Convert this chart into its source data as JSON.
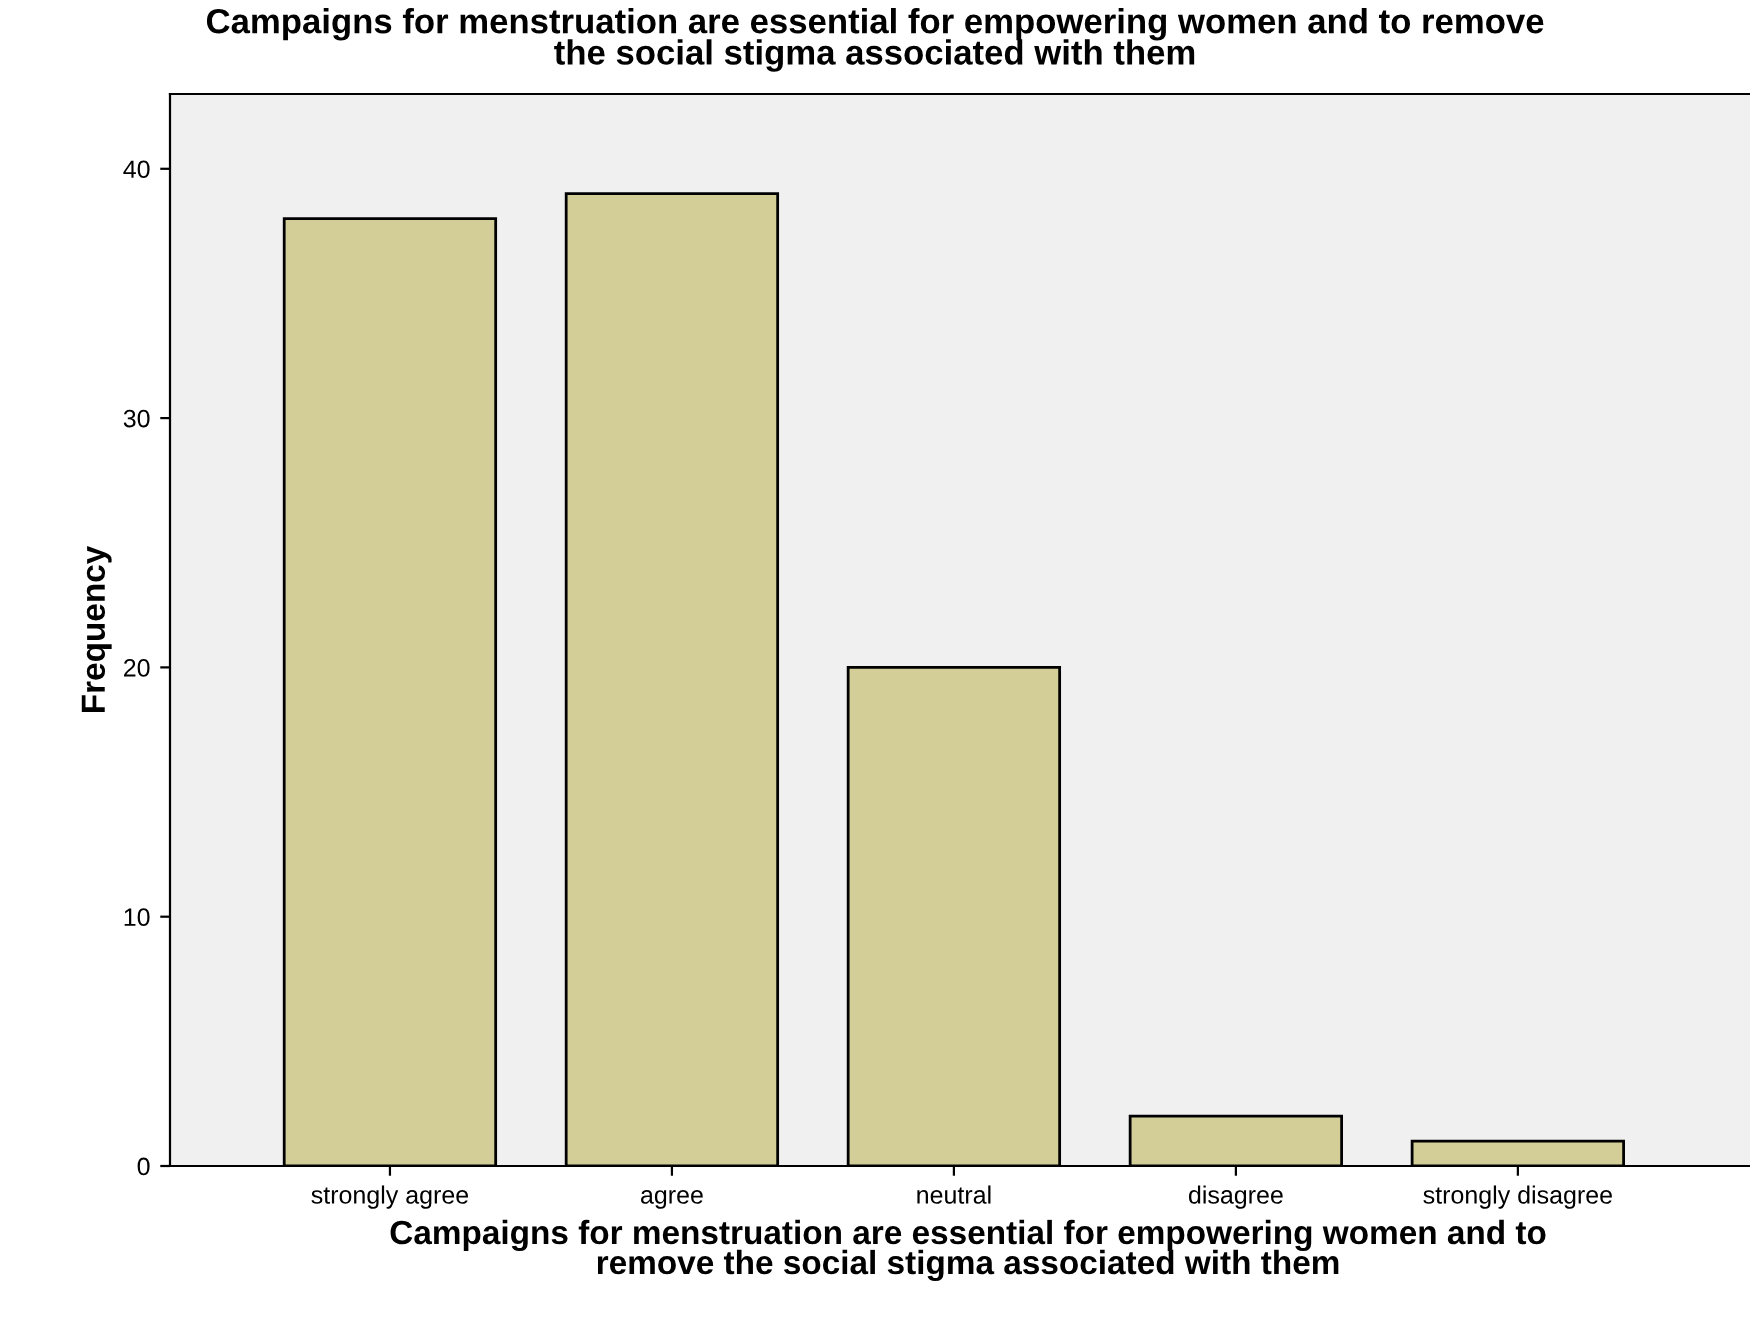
{
  "chart_data": {
    "type": "bar",
    "title": "Campaigns for menstruation are essential for empowering women and to remove\nthe social stigma associated with them",
    "xlabel": "Campaigns for menstruation are essential for empowering women and to\nremove the social stigma associated with them",
    "ylabel": "Frequency",
    "categories": [
      "strongly agree",
      "agree",
      "neutral",
      "disagree",
      "strongly disagree"
    ],
    "values": [
      38,
      39,
      20,
      2,
      1
    ],
    "color": "#d3ce98",
    "ylim": [
      0,
      43
    ],
    "yticks": [
      0,
      10,
      20,
      30,
      40
    ],
    "grid": false
  }
}
